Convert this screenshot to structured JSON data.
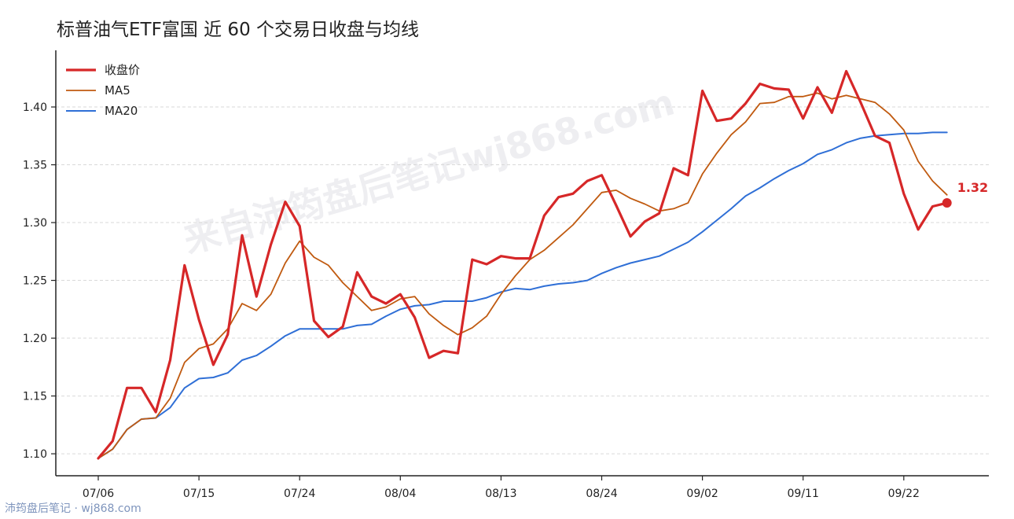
{
  "title": "标普油气ETF富国 近 60 个交易日收盘与均线",
  "watermark": "来自沛筠盘后笔记wj868.com",
  "credit": "沛筠盘后笔记 · wj868.com",
  "colors": {
    "close": "#d62728",
    "ma5": "#c05a10",
    "ma20": "#2f6fd6"
  },
  "chart_data": {
    "type": "line",
    "title": "标普油气ETF富国 近 60 个交易日收盘与均线",
    "xlabel": "",
    "ylabel": "",
    "x_ticks": [
      "07/06",
      "07/15",
      "07/24",
      "08/04",
      "08/13",
      "08/24",
      "09/02",
      "09/11",
      "09/22"
    ],
    "x_tick_index": [
      0,
      7,
      14,
      21,
      28,
      35,
      42,
      49,
      56
    ],
    "y_ticks": [
      1.1,
      1.15,
      1.2,
      1.25,
      1.3,
      1.35,
      1.4
    ],
    "ylim": [
      1.081,
      1.449
    ],
    "grid": "horizontal dashed",
    "legend": "top-left",
    "last_label": "1.32",
    "series": [
      {
        "name": "收盘价",
        "values": [
          1.096,
          1.111,
          1.157,
          1.157,
          1.136,
          1.181,
          1.263,
          1.216,
          1.177,
          1.203,
          1.289,
          1.236,
          1.281,
          1.318,
          1.297,
          1.215,
          1.201,
          1.21,
          1.257,
          1.236,
          1.23,
          1.238,
          1.218,
          1.183,
          1.189,
          1.187,
          1.268,
          1.264,
          1.271,
          1.269,
          1.269,
          1.306,
          1.322,
          1.325,
          1.336,
          1.341,
          1.315,
          1.288,
          1.301,
          1.308,
          1.347,
          1.341,
          1.414,
          1.388,
          1.39,
          1.403,
          1.42,
          1.416,
          1.415,
          1.39,
          1.417,
          1.395,
          1.431,
          1.404,
          1.375,
          1.369,
          1.325,
          1.294,
          1.314,
          1.317
        ]
      },
      {
        "name": "MA5",
        "values": [
          1.096,
          1.104,
          1.121,
          1.13,
          1.131,
          1.148,
          1.179,
          1.191,
          1.195,
          1.208,
          1.23,
          1.224,
          1.238,
          1.265,
          1.284,
          1.27,
          1.263,
          1.248,
          1.236,
          1.224,
          1.227,
          1.234,
          1.236,
          1.221,
          1.211,
          1.203,
          1.209,
          1.219,
          1.238,
          1.254,
          1.268,
          1.276,
          1.287,
          1.298,
          1.312,
          1.326,
          1.328,
          1.321,
          1.316,
          1.31,
          1.312,
          1.317,
          1.342,
          1.36,
          1.376,
          1.387,
          1.403,
          1.404,
          1.409,
          1.409,
          1.412,
          1.407,
          1.41,
          1.407,
          1.404,
          1.394,
          1.38,
          1.353,
          1.336,
          1.324
        ]
      },
      {
        "name": "MA20",
        "values": [
          1.096,
          1.104,
          1.121,
          1.13,
          1.131,
          1.14,
          1.157,
          1.165,
          1.166,
          1.17,
          1.181,
          1.185,
          1.193,
          1.202,
          1.208,
          1.208,
          1.208,
          1.208,
          1.211,
          1.212,
          1.219,
          1.225,
          1.228,
          1.229,
          1.232,
          1.232,
          1.232,
          1.235,
          1.24,
          1.243,
          1.242,
          1.245,
          1.247,
          1.248,
          1.25,
          1.256,
          1.261,
          1.265,
          1.268,
          1.271,
          1.277,
          1.283,
          1.292,
          1.302,
          1.312,
          1.323,
          1.33,
          1.338,
          1.345,
          1.351,
          1.359,
          1.363,
          1.369,
          1.373,
          1.375,
          1.376,
          1.377,
          1.377,
          1.378,
          1.378
        ]
      }
    ]
  }
}
